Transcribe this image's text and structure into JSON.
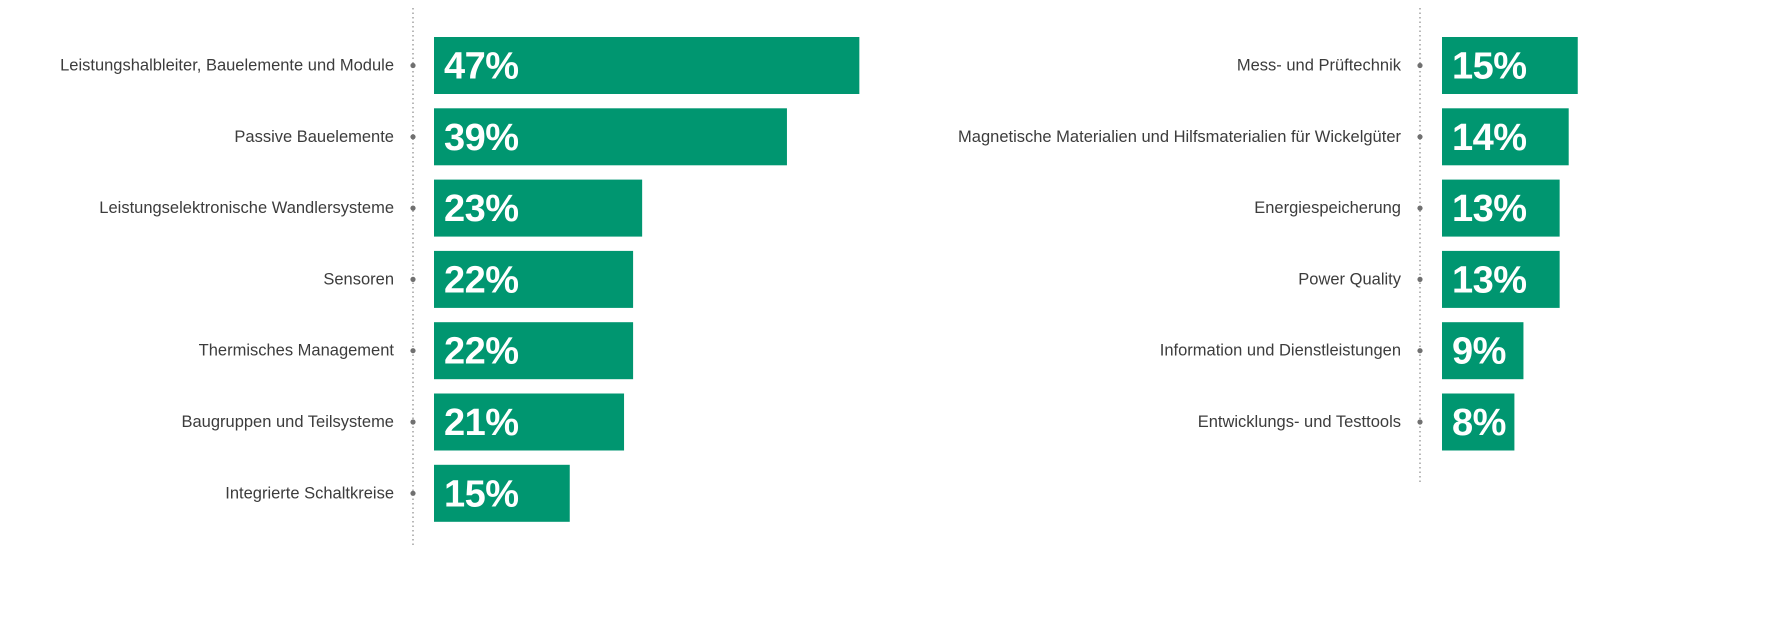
{
  "chart_data": [
    {
      "type": "bar",
      "orientation": "horizontal",
      "unit": "%",
      "bar_color": "#009670",
      "categories": [
        "Leistungshalbleiter, Bauelemente und Module",
        "Passive Bauelemente",
        "Leistungselektronische Wandlersysteme",
        "Sensoren",
        "Thermisches Management",
        "Baugruppen und Teilsysteme",
        "Integrierte Schaltkreise"
      ],
      "values": [
        47,
        39,
        23,
        22,
        22,
        21,
        15
      ],
      "labels": [
        "47%",
        "39%",
        "23%",
        "22%",
        "22%",
        "21%",
        "15%"
      ]
    },
    {
      "type": "bar",
      "orientation": "horizontal",
      "unit": "%",
      "bar_color": "#009670",
      "categories": [
        "Mess- und Prüftechnik",
        "Magnetische Materialien und Hilfsmaterialien für Wickelgüter",
        "Energiespeicherung",
        "Power Quality",
        "Information und Dienstleistungen",
        "Entwicklungs- und Testtools"
      ],
      "values": [
        15,
        14,
        13,
        13,
        9,
        8
      ],
      "labels": [
        "15%",
        "14%",
        "13%",
        "13%",
        "9%",
        "8%"
      ]
    }
  ]
}
